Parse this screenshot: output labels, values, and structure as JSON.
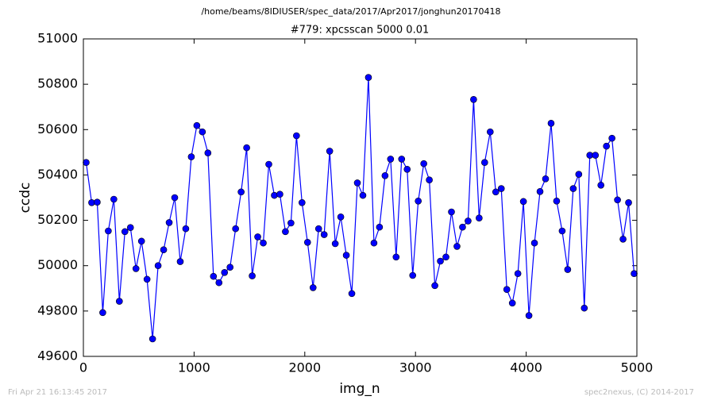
{
  "header": "/home/beams/8IDIUSER/spec_data/2017/Apr2017/jonghun20170418",
  "footer_left": "Fri Apr 21 16:13:45 2017",
  "footer_right": "spec2nexus, (C) 2014-2017",
  "chart_data": {
    "type": "line",
    "title": "#779: xpcsscan 5000 0.01",
    "x_label": "img_n",
    "y_label": "ccdc",
    "color": "#0000ff",
    "marker": true,
    "x": [
      25,
      75,
      125,
      175,
      225,
      275,
      325,
      375,
      425,
      475,
      525,
      575,
      625,
      675,
      725,
      775,
      825,
      875,
      925,
      975,
      1025,
      1075,
      1125,
      1175,
      1225,
      1275,
      1325,
      1375,
      1425,
      1475,
      1525,
      1575,
      1625,
      1675,
      1725,
      1775,
      1825,
      1875,
      1925,
      1975,
      2025,
      2075,
      2125,
      2175,
      2225,
      2275,
      2325,
      2375,
      2425,
      2475,
      2525,
      2575,
      2625,
      2675,
      2725,
      2775,
      2825,
      2875,
      2925,
      2975,
      3025,
      3075,
      3125,
      3175,
      3225,
      3275,
      3325,
      3375,
      3425,
      3475,
      3525,
      3575,
      3625,
      3675,
      3725,
      3775,
      3825,
      3875,
      3925,
      3975,
      4025,
      4075,
      4125,
      4175,
      4225,
      4275,
      4325,
      4375,
      4425,
      4475,
      4525,
      4575,
      4625,
      4675,
      4725,
      4775,
      4825,
      4875,
      4925,
      4975
    ],
    "values": [
      50455,
      50278,
      50280,
      49793,
      50153,
      50293,
      49843,
      50150,
      50168,
      49987,
      50108,
      49940,
      49677,
      50000,
      50070,
      50190,
      50300,
      50018,
      50163,
      50480,
      50618,
      50590,
      50497,
      49953,
      49925,
      49970,
      49993,
      50163,
      50325,
      50520,
      49955,
      50127,
      50100,
      50447,
      50310,
      50315,
      50150,
      50188,
      50573,
      50278,
      50103,
      49903,
      50163,
      50137,
      50505,
      50097,
      50215,
      50046,
      49877,
      50365,
      50310,
      50830,
      50100,
      50170,
      50397,
      50470,
      50038,
      50470,
      50425,
      49957,
      50285,
      50450,
      50378,
      49912,
      50020,
      50038,
      50237,
      50085,
      50170,
      50197,
      50733,
      50210,
      50455,
      50590,
      50325,
      50340,
      49895,
      49835,
      49965,
      50283,
      49780,
      50100,
      50327,
      50383,
      50628,
      50285,
      50153,
      49983,
      50340,
      50403,
      49813,
      50487,
      50487,
      50355,
      50527,
      50562,
      50290,
      50117,
      50278,
      49965
    ],
    "xlim": [
      0,
      5000
    ],
    "xticks": [
      0,
      1000,
      2000,
      3000,
      4000,
      5000
    ],
    "ylim": [
      49600,
      51000
    ],
    "yticks": [
      49600,
      49800,
      50000,
      50200,
      50400,
      50600,
      50800,
      51000
    ]
  }
}
